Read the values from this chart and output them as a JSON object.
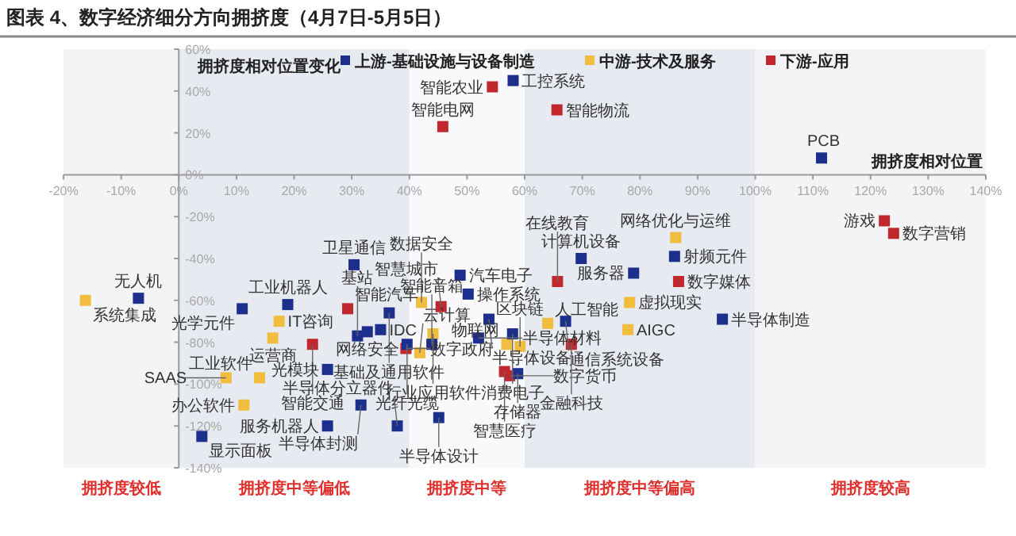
{
  "chart_data": {
    "type": "scatter",
    "title": "图表 4、数字经济细分方向拥挤度（4月7日-5月5日）",
    "xlabel": "拥挤度相对位置",
    "ylabel": "拥挤度相对位置变化",
    "marker": "square",
    "legend": "top",
    "xlim": [
      -20,
      140
    ],
    "ylim": [
      -140,
      60
    ],
    "xticks": [
      {
        "value": -20,
        "label": "-20%"
      },
      {
        "value": -10,
        "label": "-10%"
      },
      {
        "value": 0,
        "label": "0%"
      },
      {
        "value": 10,
        "label": "10%"
      },
      {
        "value": 20,
        "label": "20%"
      },
      {
        "value": 30,
        "label": "30%"
      },
      {
        "value": 40,
        "label": "40%"
      },
      {
        "value": 50,
        "label": "50%"
      },
      {
        "value": 60,
        "label": "60%"
      },
      {
        "value": 70,
        "label": "70%"
      },
      {
        "value": 80,
        "label": "80%"
      },
      {
        "value": 90,
        "label": "90%"
      },
      {
        "value": 100,
        "label": "100%"
      },
      {
        "value": 110,
        "label": "110%"
      },
      {
        "value": 120,
        "label": "120%"
      },
      {
        "value": 130,
        "label": "130%"
      },
      {
        "value": 140,
        "label": "140%"
      }
    ],
    "yticks": [
      {
        "value": -140,
        "label": "-140%"
      },
      {
        "value": -120,
        "label": "-120%"
      },
      {
        "value": -100,
        "label": "-100%"
      },
      {
        "value": -80,
        "label": "-80%"
      },
      {
        "value": -60,
        "label": "-60%"
      },
      {
        "value": -40,
        "label": "-40%"
      },
      {
        "value": -20,
        "label": "-20%"
      },
      {
        "value": 0,
        "label": "0%"
      },
      {
        "value": 20,
        "label": "20%"
      },
      {
        "value": 40,
        "label": "40%"
      },
      {
        "value": 60,
        "label": "60%"
      }
    ],
    "bands": [
      {
        "axis": "x",
        "from": -20,
        "to": 0,
        "label": "拥挤度较低",
        "color": "#f4f4f6"
      },
      {
        "axis": "x",
        "from": 0,
        "to": 40,
        "label": "拥挤度中等偏低",
        "color": "#e8eaf1"
      },
      {
        "axis": "x",
        "from": 40,
        "to": 60,
        "label": "拥挤度中等",
        "color": "#f9f9fb"
      },
      {
        "axis": "x",
        "from": 60,
        "to": 100,
        "label": "拥挤度中等偏高",
        "color": "#e8eaf1"
      },
      {
        "axis": "x",
        "from": 100,
        "to": 140,
        "label": "拥挤度较高",
        "color": "#f4f4f6"
      }
    ],
    "series": [
      {
        "name": "上游-基础设施与设备制造",
        "color": "#1c2f8c",
        "x": [
          58,
          111.5,
          30.4,
          -7,
          11,
          18.9,
          36.5,
          32.7,
          31,
          35,
          39.6,
          50.2,
          48.8,
          53.8,
          52,
          57.9,
          43.9,
          58.8,
          45.1,
          31.6,
          25.8,
          37.9,
          25.8,
          4,
          69.8,
          78.9,
          86,
          67.1,
          94.3
        ],
        "values": [
          45,
          8,
          -43,
          -59,
          -64,
          -62,
          -66,
          -75,
          -77,
          -74,
          -81,
          -57,
          -48,
          -69,
          -78,
          -76,
          -81,
          -95,
          -116,
          -110,
          -120,
          -120,
          -93,
          -125,
          -40,
          -47,
          -39,
          -70,
          -69
        ]
      },
      {
        "name": "中游-技术及服务",
        "color": "#f0bd3e",
        "x": [
          -16.2,
          17.4,
          16.3,
          42.1,
          44.1,
          41.8,
          64,
          56.9,
          59.2,
          14,
          8.2,
          11.3,
          86.2,
          78.2,
          77.9
        ],
        "values": [
          -60,
          -70,
          -78,
          -61,
          -76,
          -85,
          -71,
          -81,
          -82,
          -97,
          -97,
          -110,
          -30,
          -61,
          -74
        ]
      },
      {
        "name": "下游-应用",
        "color": "#c0282d",
        "x": [
          54.4,
          45.8,
          65.6,
          122.4,
          124,
          29.3,
          23.2,
          45.5,
          39.4,
          56.5,
          57.4,
          65.7,
          86.7,
          68.1
        ],
        "values": [
          42,
          23,
          31,
          -22,
          -28,
          -64,
          -81,
          -63,
          -83,
          -94,
          -96,
          -51,
          -51,
          -81
        ]
      }
    ],
    "annotations": [
      {
        "text": "工控系统",
        "x": 58,
        "y": 45
      },
      {
        "text": "智能农业",
        "x": 54.4,
        "y": 42
      },
      {
        "text": "智能电网",
        "x": 45.8,
        "y": 23
      },
      {
        "text": "智能物流",
        "x": 65.6,
        "y": 31
      },
      {
        "text": "PCB",
        "x": 111.5,
        "y": 8
      },
      {
        "text": "游戏",
        "x": 122.4,
        "y": -22
      },
      {
        "text": "数字营销",
        "x": 124,
        "y": -28
      },
      {
        "text": "卫星通信",
        "x": 30.4,
        "y": -43
      },
      {
        "text": "系统集成",
        "x": -16.2,
        "y": -60
      },
      {
        "text": "无人机",
        "x": -7,
        "y": -59
      },
      {
        "text": "光学元件",
        "x": 11,
        "y": -64
      },
      {
        "text": "工业机器人",
        "x": 18.9,
        "y": -62
      },
      {
        "text": "智能汽车",
        "x": 29.3,
        "y": -64
      },
      {
        "text": "IT咨询",
        "x": 17.4,
        "y": -70
      },
      {
        "text": "运营商",
        "x": 16.3,
        "y": -78
      },
      {
        "text": "智能交通",
        "x": 23.2,
        "y": -81
      },
      {
        "text": "基础及通用软件",
        "x": 36.5,
        "y": -66
      },
      {
        "text": "网络安全",
        "x": 32.7,
        "y": -75
      },
      {
        "text": "基站",
        "x": 31,
        "y": -77
      },
      {
        "text": "IDC",
        "x": 35,
        "y": -74
      },
      {
        "text": "光纤光缆",
        "x": 39.6,
        "y": -81
      },
      {
        "text": "数字政府",
        "x": 39.4,
        "y": -83
      },
      {
        "text": "云计算",
        "x": 41.8,
        "y": -85
      },
      {
        "text": "智慧城市",
        "x": 45.5,
        "y": -63
      },
      {
        "text": "数据安全",
        "x": 42.1,
        "y": -61
      },
      {
        "text": "操作系统",
        "x": 50.2,
        "y": -57
      },
      {
        "text": "汽车电子",
        "x": 48.8,
        "y": -48
      },
      {
        "text": "行业应用软件",
        "x": 44.1,
        "y": -76
      },
      {
        "text": "半导体设备",
        "x": 53.8,
        "y": -69
      },
      {
        "text": "半导体材料",
        "x": 52,
        "y": -78
      },
      {
        "text": "消费电子",
        "x": 57.9,
        "y": -76
      },
      {
        "text": "人工智能",
        "x": 64,
        "y": -71
      },
      {
        "text": "物联网",
        "x": 56.9,
        "y": -81
      },
      {
        "text": "区块链",
        "x": 59.2,
        "y": -82
      },
      {
        "text": "智能音箱",
        "x": 43.9,
        "y": -81
      },
      {
        "text": "智慧医疗",
        "x": 56.5,
        "y": -94
      },
      {
        "text": "数字货币",
        "x": 57.4,
        "y": -96
      },
      {
        "text": "存储器",
        "x": 58.8,
        "y": -95
      },
      {
        "text": "半导体设计",
        "x": 45.1,
        "y": -116
      },
      {
        "text": "半导体封测",
        "x": 31.6,
        "y": -110
      },
      {
        "text": "服务机器人",
        "x": 25.8,
        "y": -120
      },
      {
        "text": "半导体分立器件",
        "x": 37.9,
        "y": -120
      },
      {
        "text": "光模块",
        "x": 25.8,
        "y": -93
      },
      {
        "text": "工业软件",
        "x": 14,
        "y": -97
      },
      {
        "text": "SAAS",
        "x": 8.2,
        "y": -97
      },
      {
        "text": "办公软件",
        "x": 11.3,
        "y": -110
      },
      {
        "text": "显示面板",
        "x": 4,
        "y": -125
      },
      {
        "text": "计算机设备",
        "x": 69.8,
        "y": -40
      },
      {
        "text": "在线教育",
        "x": 65.7,
        "y": -51
      },
      {
        "text": "服务器",
        "x": 78.9,
        "y": -47
      },
      {
        "text": "网络优化与运维",
        "x": 86.2,
        "y": -30
      },
      {
        "text": "射频元件",
        "x": 86,
        "y": -39
      },
      {
        "text": "数字媒体",
        "x": 86.7,
        "y": -51
      },
      {
        "text": "虚拟现实",
        "x": 78.2,
        "y": -61
      },
      {
        "text": "通信系统设备",
        "x": 67.1,
        "y": -70
      },
      {
        "text": "AIGC",
        "x": 77.9,
        "y": -74
      },
      {
        "text": "金融科技",
        "x": 68.1,
        "y": -81
      },
      {
        "text": "半导体制造",
        "x": 94.3,
        "y": -69
      }
    ]
  }
}
